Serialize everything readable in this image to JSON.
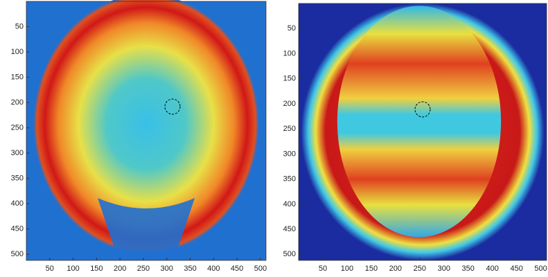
{
  "chart_data": [
    {
      "type": "image",
      "xlim": [
        0,
        512
      ],
      "ylim": [
        512,
        0
      ],
      "xticks": [
        50,
        100,
        150,
        200,
        250,
        300,
        350,
        400,
        450,
        500
      ],
      "yticks": [
        50,
        100,
        150,
        200,
        250,
        300,
        350,
        400,
        450,
        500
      ]
    },
    {
      "type": "image",
      "xlim": [
        0,
        512
      ],
      "ylim": [
        512,
        0
      ],
      "xticks": [
        50,
        100,
        150,
        200,
        250,
        300,
        350,
        400,
        450,
        500
      ],
      "yticks": [
        50,
        100,
        150,
        200,
        250,
        300,
        350,
        400,
        450,
        500
      ]
    }
  ]
}
